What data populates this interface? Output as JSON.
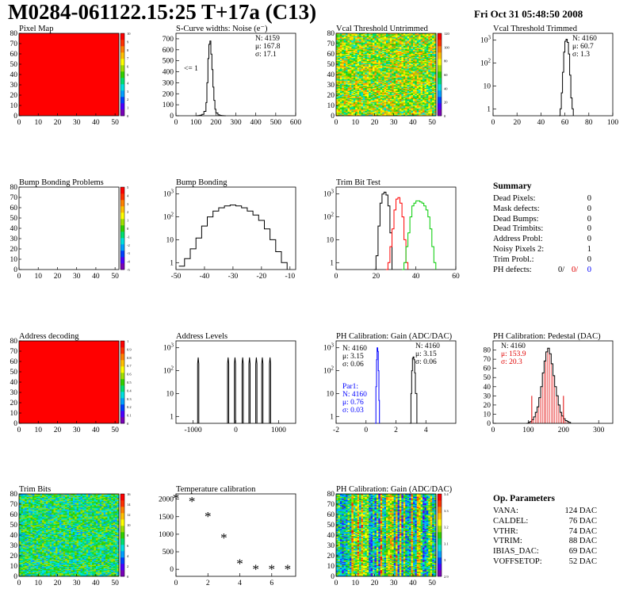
{
  "header": {
    "title": "M0284-061122.15:25 T+17a (C13)",
    "date": "Fri Oct 31 05:48:50 2008"
  },
  "chart_data": [
    {
      "id": "pixel-map",
      "type": "heatmap",
      "title": "Pixel Map",
      "xlim": [
        0,
        52
      ],
      "ylim": [
        0,
        80
      ],
      "xticks": [
        0,
        10,
        20,
        30,
        40,
        50
      ],
      "yticks": [
        0,
        10,
        20,
        30,
        40,
        50,
        60,
        70,
        80
      ],
      "fill": "uniform",
      "palette_value": 10,
      "palette": {
        "ticks": [
          0,
          1,
          2,
          3,
          4,
          5,
          6,
          7,
          8,
          9,
          10
        ]
      }
    },
    {
      "id": "noise",
      "type": "line",
      "title": "S-Curve widths: Noise (e⁻)",
      "xlim": [
        0,
        600
      ],
      "ylim": [
        0,
        750
      ],
      "xticks": [
        0,
        100,
        200,
        300,
        400,
        500,
        600
      ],
      "yticks": [
        0,
        100,
        200,
        300,
        400,
        500,
        600,
        700
      ],
      "stats": [
        "N: 4159",
        "μ: 167.8",
        "σ: 17.1"
      ],
      "annotation": "<= 1",
      "series": [
        {
          "color": "#000000",
          "x": [
            100,
            110,
            120,
            130,
            140,
            150,
            155,
            160,
            165,
            170,
            175,
            180,
            185,
            190,
            195,
            200,
            210,
            220,
            230,
            240,
            250
          ],
          "y": [
            0,
            2,
            5,
            12,
            40,
            120,
            300,
            520,
            650,
            680,
            560,
            420,
            260,
            140,
            60,
            25,
            8,
            3,
            1,
            0,
            0
          ]
        }
      ]
    },
    {
      "id": "vcal-untrimmed",
      "type": "heatmap",
      "title": "Vcal Threshold Untrimmed",
      "xlim": [
        0,
        52
      ],
      "ylim": [
        0,
        80
      ],
      "xticks": [
        0,
        10,
        20,
        30,
        40,
        50
      ],
      "yticks": [
        0,
        10,
        20,
        30,
        40,
        50,
        60,
        70,
        80
      ],
      "fill": "noise",
      "value_range": [
        40,
        100
      ],
      "palette": {
        "ticks": [
          0,
          20,
          40,
          60,
          80,
          100,
          120
        ]
      }
    },
    {
      "id": "vcal-trimmed",
      "type": "line",
      "title": "Vcal Threshold Trimmed",
      "log_y": true,
      "xlim": [
        0,
        100
      ],
      "ylim": [
        0.5,
        2000
      ],
      "xticks": [
        0,
        20,
        40,
        60,
        80,
        100
      ],
      "yticks": [
        1,
        10,
        100,
        1000
      ],
      "stats": [
        "N: 4160",
        "μ: 60.7",
        "σ:  1.3"
      ],
      "series": [
        {
          "color": "#000000",
          "x": [
            55,
            56,
            57,
            58,
            59,
            60,
            61,
            62,
            63,
            64,
            65,
            66,
            67
          ],
          "y": [
            0.5,
            1,
            5,
            40,
            300,
            900,
            1100,
            800,
            250,
            30,
            3,
            1,
            0.5
          ]
        }
      ]
    },
    {
      "id": "bump-problems",
      "type": "heatmap",
      "title": "Bump Bonding Problems",
      "xlim": [
        0,
        52
      ],
      "ylim": [
        0,
        80
      ],
      "xticks": [
        0,
        10,
        20,
        30,
        40,
        50
      ],
      "yticks": [
        0,
        10,
        20,
        30,
        40,
        50,
        60,
        70,
        80
      ],
      "fill": "none",
      "palette": {
        "ticks": [
          -5,
          -4,
          -3,
          -2,
          -1,
          0,
          1,
          2,
          3,
          4,
          5
        ]
      }
    },
    {
      "id": "bump-bonding",
      "type": "line",
      "title": "Bump Bonding",
      "log_y": true,
      "xlim": [
        -50,
        -8
      ],
      "ylim": [
        0.5,
        2000
      ],
      "xticks": [
        -50,
        -40,
        -30,
        -20,
        -10
      ],
      "yticks": [
        1,
        10,
        100,
        1000
      ],
      "series": [
        {
          "color": "#000000",
          "x": [
            -49,
            -47,
            -45,
            -43,
            -41,
            -39,
            -37,
            -35,
            -33,
            -31,
            -29,
            -27,
            -25,
            -23,
            -21,
            -19,
            -17,
            -15,
            -13,
            -11
          ],
          "y": [
            0.7,
            1.5,
            4,
            12,
            40,
            100,
            180,
            250,
            300,
            330,
            300,
            250,
            180,
            120,
            70,
            30,
            10,
            3,
            1,
            0.5
          ]
        }
      ]
    },
    {
      "id": "trim-bit-test",
      "type": "line",
      "title": "Trim Bit Test",
      "log_y": true,
      "xlim": [
        0,
        60
      ],
      "ylim": [
        0.5,
        2000
      ],
      "xticks": [
        0,
        20,
        40,
        60
      ],
      "yticks": [
        1,
        10,
        100,
        1000
      ],
      "series": [
        {
          "color": "#000000",
          "x": [
            19,
            20,
            21,
            22,
            23,
            24,
            25,
            26,
            27,
            28
          ],
          "y": [
            0.5,
            2,
            40,
            400,
            1000,
            1200,
            900,
            300,
            20,
            0.5
          ]
        },
        {
          "color": "#ff0000",
          "x": [
            25,
            26,
            27,
            28,
            29,
            30,
            31,
            32,
            33,
            34,
            35,
            36
          ],
          "y": [
            0.5,
            1,
            5,
            30,
            200,
            600,
            700,
            400,
            100,
            10,
            1,
            0.5
          ]
        },
        {
          "color": "#00cc00",
          "x": [
            33,
            34,
            35,
            36,
            37,
            38,
            39,
            40,
            41,
            42,
            43,
            44,
            45,
            46,
            47,
            48,
            49,
            50
          ],
          "y": [
            0.5,
            1,
            5,
            20,
            100,
            300,
            400,
            500,
            500,
            450,
            400,
            300,
            200,
            100,
            30,
            5,
            1,
            0.5
          ]
        }
      ]
    },
    {
      "id": "address-decoding",
      "type": "heatmap",
      "title": "Address decoding",
      "xlim": [
        0,
        52
      ],
      "ylim": [
        0,
        80
      ],
      "xticks": [
        0,
        10,
        20,
        30,
        40,
        50
      ],
      "yticks": [
        0,
        10,
        20,
        30,
        40,
        50,
        60,
        70,
        80
      ],
      "fill": "uniform",
      "palette_value": 1,
      "palette": {
        "ticks": [
          0,
          0.1,
          0.2,
          0.3,
          0.4,
          0.5,
          0.6,
          0.7,
          0.8,
          0.9,
          1
        ]
      }
    },
    {
      "id": "address-levels",
      "type": "line",
      "title": "Address Levels",
      "log_y": true,
      "xlim": [
        -1400,
        1400
      ],
      "ylim": [
        0.5,
        2000
      ],
      "xticks": [
        -1000,
        0,
        1000
      ],
      "yticks": [
        1,
        10,
        100,
        1000
      ],
      "peaks": [
        -880,
        -180,
        -20,
        160,
        320,
        480,
        620,
        800
      ],
      "peak_height": 200,
      "peak_half_width": 14
    },
    {
      "id": "ph-gain",
      "type": "line",
      "title": "PH Calibration: Gain (ADC/DAC)",
      "log_y": true,
      "xlim": [
        -2,
        6
      ],
      "ylim": [
        0.5,
        2000
      ],
      "xticks": [
        -2,
        0,
        2,
        4
      ],
      "yticks": [
        1,
        10,
        100,
        1000
      ],
      "stats": [
        "N: 4160",
        "μ: 3.15",
        "σ: 0.06"
      ],
      "stats_par1": [
        "Par1:",
        "N: 4160",
        "μ: 0.76",
        "σ: 0.03"
      ],
      "series": [
        {
          "color": "#000000",
          "x": [
            2.9,
            3.0,
            3.05,
            3.1,
            3.15,
            3.2,
            3.25,
            3.3,
            3.4
          ],
          "y": [
            0.5,
            10,
            100,
            350,
            400,
            300,
            80,
            10,
            0.5
          ]
        },
        {
          "color": "#0000ff",
          "x": [
            0.6,
            0.66,
            0.7,
            0.74,
            0.78,
            0.82,
            0.86,
            0.9
          ],
          "y": [
            0.5,
            20,
            300,
            1000,
            700,
            100,
            5,
            0.5
          ]
        }
      ]
    },
    {
      "id": "ph-pedestal",
      "type": "line",
      "title": "PH Calibration: Pedestal (DAC)",
      "xlim": [
        0,
        340
      ],
      "ylim": [
        0,
        90
      ],
      "xticks": [
        0,
        100,
        200,
        300
      ],
      "yticks": [
        0,
        10,
        20,
        30,
        40,
        50,
        60,
        70,
        80
      ],
      "stats": [
        "N: 4160",
        "μ: 153.9",
        "σ: 20.3"
      ],
      "series": [
        {
          "color": "#000000",
          "x": [
            95,
            100,
            105,
            110,
            115,
            120,
            125,
            130,
            135,
            140,
            145,
            150,
            155,
            160,
            165,
            170,
            175,
            180,
            185,
            190,
            195,
            200,
            205,
            210,
            215,
            220
          ],
          "y": [
            0,
            1,
            2,
            4,
            7,
            12,
            18,
            28,
            40,
            55,
            68,
            78,
            82,
            76,
            65,
            52,
            40,
            30,
            20,
            12,
            8,
            5,
            3,
            2,
            1,
            0
          ]
        }
      ]
    },
    {
      "id": "trim-bits",
      "type": "heatmap",
      "title": "Trim Bits",
      "xlim": [
        0,
        52
      ],
      "ylim": [
        0,
        80
      ],
      "xticks": [
        0,
        10,
        20,
        30,
        40,
        50
      ],
      "yticks": [
        0,
        10,
        20,
        30,
        40,
        50,
        60,
        70,
        80
      ],
      "fill": "noise",
      "value_range": [
        4,
        10
      ],
      "palette": {
        "ticks": [
          0,
          2,
          4,
          6,
          8,
          10,
          12,
          14,
          16
        ]
      }
    },
    {
      "id": "temperature",
      "type": "scatter",
      "title": "Temperature calibration",
      "xlim": [
        0,
        7.5
      ],
      "ylim": [
        -200,
        2150
      ],
      "xticks": [
        0,
        2,
        4,
        6
      ],
      "yticks": [
        0,
        500,
        1000,
        1500,
        2000
      ],
      "series": [
        {
          "color": "#000000",
          "x": [
            0,
            1,
            2,
            3,
            4,
            5,
            6,
            7
          ],
          "y": [
            2020,
            1920,
            1500,
            880,
            150,
            -10,
            -10,
            -10
          ]
        }
      ]
    },
    {
      "id": "ph-gain-map",
      "type": "heatmap",
      "title": "PH Calibration: Gain (ADC/DAC)",
      "xlim": [
        0,
        52
      ],
      "ylim": [
        0,
        80
      ],
      "xticks": [
        0,
        10,
        20,
        30,
        40,
        50
      ],
      "yticks": [
        0,
        10,
        20,
        30,
        40,
        50,
        60,
        70,
        80
      ],
      "fill": "stripes",
      "value_range": [
        2.9,
        3.4
      ],
      "palette": {
        "ticks": [
          2.9,
          3,
          3.1,
          3.2,
          3.3,
          3.4
        ]
      }
    }
  ],
  "summary": {
    "title": "Summary",
    "rows": [
      {
        "label": "Dead Pixels:",
        "value": "0"
      },
      {
        "label": "Mask defects:",
        "value": "0"
      },
      {
        "label": "Dead Bumps:",
        "value": "0"
      },
      {
        "label": "Dead Trimbits:",
        "value": "0"
      },
      {
        "label": "Address Probl:",
        "value": "0"
      },
      {
        "label": "Noisy Pixels 2:",
        "value": "1"
      },
      {
        "label": "Trim Probl.:",
        "value": "0"
      }
    ],
    "ph_defects": {
      "label": "PH defects:",
      "black": "0/",
      "red": "0/",
      "blue": "0"
    }
  },
  "params": {
    "title": "Op. Parameters",
    "rows": [
      {
        "label": "VANA:",
        "value": "124 DAC"
      },
      {
        "label": "CALDEL:",
        "value": "76 DAC"
      },
      {
        "label": "VTHR:",
        "value": "74 DAC"
      },
      {
        "label": "VTRIM:",
        "value": "88 DAC"
      },
      {
        "label": "IBIAS_DAC:",
        "value": "69 DAC"
      },
      {
        "label": "VOFFSETOP:",
        "value": "52 DAC"
      }
    ]
  }
}
